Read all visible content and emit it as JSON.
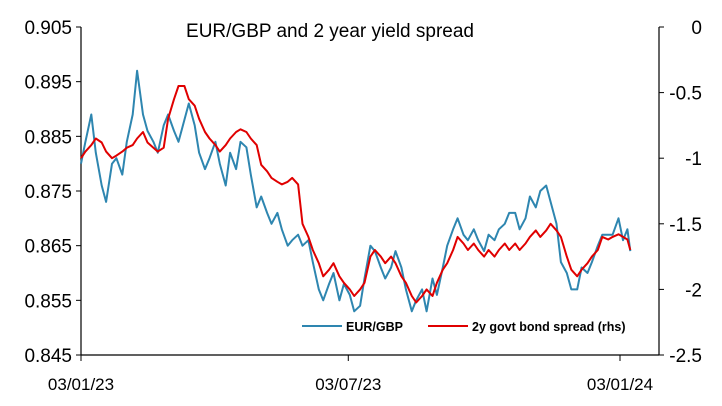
{
  "chart_data": {
    "type": "line",
    "title": "EUR/GBP and 2 year yield spread",
    "xlabel": "",
    "ylabel": "",
    "y2label": "",
    "x_ticks": [
      "03/01/23",
      "03/07/23",
      "03/01/24"
    ],
    "x_range": [
      "2023-01-03",
      "2024-01-10"
    ],
    "ylim_left": [
      0.845,
      0.905
    ],
    "yticks_left": [
      "0.905",
      "0.895",
      "0.885",
      "0.875",
      "0.865",
      "0.855",
      "0.845"
    ],
    "ylim_right": [
      -2.5,
      0
    ],
    "yticks_right": [
      "0",
      "-0.5",
      "-1",
      "-1.5",
      "-2",
      "-2.5"
    ],
    "grid": false,
    "legend_position": "bottom-right",
    "colors": {
      "eurgbp": "#2E86B0",
      "spread": "#E00000"
    },
    "series": [
      {
        "name": "EUR/GBP",
        "axis": "left",
        "points": [
          [
            "2023-01-03",
            0.88
          ],
          [
            "2023-01-06",
            0.884
          ],
          [
            "2023-01-10",
            0.889
          ],
          [
            "2023-01-13",
            0.882
          ],
          [
            "2023-01-17",
            0.876
          ],
          [
            "2023-01-20",
            0.873
          ],
          [
            "2023-01-24",
            0.88
          ],
          [
            "2023-01-27",
            0.881
          ],
          [
            "2023-01-31",
            0.878
          ],
          [
            "2023-02-03",
            0.884
          ],
          [
            "2023-02-07",
            0.889
          ],
          [
            "2023-02-10",
            0.897
          ],
          [
            "2023-02-14",
            0.889
          ],
          [
            "2023-02-17",
            0.886
          ],
          [
            "2023-02-21",
            0.884
          ],
          [
            "2023-02-24",
            0.882
          ],
          [
            "2023-02-28",
            0.887
          ],
          [
            "2023-03-03",
            0.889
          ],
          [
            "2023-03-07",
            0.886
          ],
          [
            "2023-03-10",
            0.884
          ],
          [
            "2023-03-14",
            0.888
          ],
          [
            "2023-03-17",
            0.891
          ],
          [
            "2023-03-21",
            0.887
          ],
          [
            "2023-03-24",
            0.882
          ],
          [
            "2023-03-28",
            0.879
          ],
          [
            "2023-03-31",
            0.881
          ],
          [
            "2023-04-04",
            0.884
          ],
          [
            "2023-04-07",
            0.88
          ],
          [
            "2023-04-11",
            0.876
          ],
          [
            "2023-04-14",
            0.882
          ],
          [
            "2023-04-18",
            0.879
          ],
          [
            "2023-04-21",
            0.884
          ],
          [
            "2023-04-25",
            0.883
          ],
          [
            "2023-04-28",
            0.878
          ],
          [
            "2023-05-02",
            0.872
          ],
          [
            "2023-05-05",
            0.874
          ],
          [
            "2023-05-09",
            0.871
          ],
          [
            "2023-05-12",
            0.869
          ],
          [
            "2023-05-16",
            0.871
          ],
          [
            "2023-05-19",
            0.868
          ],
          [
            "2023-05-23",
            0.865
          ],
          [
            "2023-05-26",
            0.866
          ],
          [
            "2023-05-30",
            0.867
          ],
          [
            "2023-06-02",
            0.865
          ],
          [
            "2023-06-06",
            0.866
          ],
          [
            "2023-06-09",
            0.862
          ],
          [
            "2023-06-13",
            0.857
          ],
          [
            "2023-06-16",
            0.855
          ],
          [
            "2023-06-20",
            0.858
          ],
          [
            "2023-06-23",
            0.86
          ],
          [
            "2023-06-27",
            0.855
          ],
          [
            "2023-06-30",
            0.858
          ],
          [
            "2023-07-04",
            0.856
          ],
          [
            "2023-07-07",
            0.853
          ],
          [
            "2023-07-11",
            0.854
          ],
          [
            "2023-07-14",
            0.859
          ],
          [
            "2023-07-18",
            0.865
          ],
          [
            "2023-07-21",
            0.864
          ],
          [
            "2023-07-25",
            0.861
          ],
          [
            "2023-07-28",
            0.859
          ],
          [
            "2023-08-01",
            0.861
          ],
          [
            "2023-08-04",
            0.864
          ],
          [
            "2023-08-08",
            0.861
          ],
          [
            "2023-08-11",
            0.857
          ],
          [
            "2023-08-15",
            0.853
          ],
          [
            "2023-08-18",
            0.855
          ],
          [
            "2023-08-22",
            0.857
          ],
          [
            "2023-08-25",
            0.853
          ],
          [
            "2023-08-29",
            0.859
          ],
          [
            "2023-09-01",
            0.856
          ],
          [
            "2023-09-05",
            0.861
          ],
          [
            "2023-09-08",
            0.865
          ],
          [
            "2023-09-12",
            0.868
          ],
          [
            "2023-09-15",
            0.87
          ],
          [
            "2023-09-19",
            0.867
          ],
          [
            "2023-09-22",
            0.866
          ],
          [
            "2023-09-26",
            0.868
          ],
          [
            "2023-09-29",
            0.866
          ],
          [
            "2023-10-03",
            0.864
          ],
          [
            "2023-10-06",
            0.867
          ],
          [
            "2023-10-10",
            0.866
          ],
          [
            "2023-10-13",
            0.868
          ],
          [
            "2023-10-17",
            0.869
          ],
          [
            "2023-10-20",
            0.871
          ],
          [
            "2023-10-24",
            0.871
          ],
          [
            "2023-10-27",
            0.868
          ],
          [
            "2023-10-31",
            0.87
          ],
          [
            "2023-11-03",
            0.874
          ],
          [
            "2023-11-07",
            0.872
          ],
          [
            "2023-11-10",
            0.875
          ],
          [
            "2023-11-14",
            0.876
          ],
          [
            "2023-11-17",
            0.873
          ],
          [
            "2023-11-21",
            0.869
          ],
          [
            "2023-11-24",
            0.862
          ],
          [
            "2023-11-28",
            0.86
          ],
          [
            "2023-12-01",
            0.857
          ],
          [
            "2023-12-05",
            0.857
          ],
          [
            "2023-12-08",
            0.861
          ],
          [
            "2023-12-12",
            0.86
          ],
          [
            "2023-12-15",
            0.862
          ],
          [
            "2023-12-19",
            0.865
          ],
          [
            "2023-12-22",
            0.867
          ],
          [
            "2023-12-26",
            0.867
          ],
          [
            "2023-12-29",
            0.867
          ],
          [
            "2024-01-02",
            0.87
          ],
          [
            "2024-01-05",
            0.866
          ],
          [
            "2024-01-08",
            0.868
          ],
          [
            "2024-01-10",
            0.864
          ]
        ]
      },
      {
        "name": "2y govt bond spread (rhs)",
        "axis": "right",
        "points": [
          [
            "2023-01-03",
            -1.0
          ],
          [
            "2023-01-06",
            -0.95
          ],
          [
            "2023-01-10",
            -0.9
          ],
          [
            "2023-01-13",
            -0.85
          ],
          [
            "2023-01-17",
            -0.88
          ],
          [
            "2023-01-20",
            -0.95
          ],
          [
            "2023-01-24",
            -1.0
          ],
          [
            "2023-01-27",
            -0.98
          ],
          [
            "2023-01-31",
            -0.95
          ],
          [
            "2023-02-03",
            -0.92
          ],
          [
            "2023-02-07",
            -0.9
          ],
          [
            "2023-02-10",
            -0.85
          ],
          [
            "2023-02-14",
            -0.8
          ],
          [
            "2023-02-17",
            -0.88
          ],
          [
            "2023-02-21",
            -0.92
          ],
          [
            "2023-02-24",
            -0.95
          ],
          [
            "2023-02-28",
            -0.92
          ],
          [
            "2023-03-03",
            -0.7
          ],
          [
            "2023-03-07",
            -0.55
          ],
          [
            "2023-03-10",
            -0.45
          ],
          [
            "2023-03-14",
            -0.45
          ],
          [
            "2023-03-17",
            -0.55
          ],
          [
            "2023-03-21",
            -0.6
          ],
          [
            "2023-03-24",
            -0.7
          ],
          [
            "2023-03-28",
            -0.8
          ],
          [
            "2023-03-31",
            -0.85
          ],
          [
            "2023-04-04",
            -0.9
          ],
          [
            "2023-04-07",
            -0.95
          ],
          [
            "2023-04-11",
            -0.9
          ],
          [
            "2023-04-14",
            -0.85
          ],
          [
            "2023-04-18",
            -0.8
          ],
          [
            "2023-04-21",
            -0.78
          ],
          [
            "2023-04-25",
            -0.8
          ],
          [
            "2023-04-28",
            -0.85
          ],
          [
            "2023-05-02",
            -0.9
          ],
          [
            "2023-05-05",
            -1.05
          ],
          [
            "2023-05-09",
            -1.1
          ],
          [
            "2023-05-12",
            -1.15
          ],
          [
            "2023-05-16",
            -1.18
          ],
          [
            "2023-05-19",
            -1.2
          ],
          [
            "2023-05-23",
            -1.18
          ],
          [
            "2023-05-26",
            -1.15
          ],
          [
            "2023-05-30",
            -1.2
          ],
          [
            "2023-06-02",
            -1.5
          ],
          [
            "2023-06-06",
            -1.6
          ],
          [
            "2023-06-09",
            -1.7
          ],
          [
            "2023-06-13",
            -1.8
          ],
          [
            "2023-06-16",
            -1.9
          ],
          [
            "2023-06-20",
            -1.85
          ],
          [
            "2023-06-23",
            -1.8
          ],
          [
            "2023-06-27",
            -1.9
          ],
          [
            "2023-06-30",
            -1.95
          ],
          [
            "2023-07-04",
            -2.0
          ],
          [
            "2023-07-07",
            -2.05
          ],
          [
            "2023-07-11",
            -2.0
          ],
          [
            "2023-07-14",
            -1.95
          ],
          [
            "2023-07-18",
            -1.75
          ],
          [
            "2023-07-21",
            -1.7
          ],
          [
            "2023-07-25",
            -1.75
          ],
          [
            "2023-07-28",
            -1.8
          ],
          [
            "2023-08-01",
            -1.75
          ],
          [
            "2023-08-04",
            -1.8
          ],
          [
            "2023-08-08",
            -1.9
          ],
          [
            "2023-08-11",
            -1.95
          ],
          [
            "2023-08-15",
            -2.05
          ],
          [
            "2023-08-18",
            -2.1
          ],
          [
            "2023-08-22",
            -2.05
          ],
          [
            "2023-08-25",
            -2.0
          ],
          [
            "2023-08-29",
            -2.05
          ],
          [
            "2023-09-01",
            -1.95
          ],
          [
            "2023-09-05",
            -1.85
          ],
          [
            "2023-09-08",
            -1.8
          ],
          [
            "2023-09-12",
            -1.7
          ],
          [
            "2023-09-15",
            -1.6
          ],
          [
            "2023-09-19",
            -1.65
          ],
          [
            "2023-09-22",
            -1.7
          ],
          [
            "2023-09-26",
            -1.65
          ],
          [
            "2023-09-29",
            -1.7
          ],
          [
            "2023-10-03",
            -1.75
          ],
          [
            "2023-10-06",
            -1.7
          ],
          [
            "2023-10-10",
            -1.75
          ],
          [
            "2023-10-13",
            -1.7
          ],
          [
            "2023-10-17",
            -1.65
          ],
          [
            "2023-10-20",
            -1.7
          ],
          [
            "2023-10-24",
            -1.65
          ],
          [
            "2023-10-27",
            -1.7
          ],
          [
            "2023-10-31",
            -1.65
          ],
          [
            "2023-11-03",
            -1.6
          ],
          [
            "2023-11-07",
            -1.55
          ],
          [
            "2023-11-10",
            -1.6
          ],
          [
            "2023-11-14",
            -1.55
          ],
          [
            "2023-11-17",
            -1.5
          ],
          [
            "2023-11-21",
            -1.55
          ],
          [
            "2023-11-24",
            -1.6
          ],
          [
            "2023-11-28",
            -1.75
          ],
          [
            "2023-12-01",
            -1.85
          ],
          [
            "2023-12-05",
            -1.9
          ],
          [
            "2023-12-08",
            -1.85
          ],
          [
            "2023-12-12",
            -1.8
          ],
          [
            "2023-12-15",
            -1.75
          ],
          [
            "2023-12-19",
            -1.7
          ],
          [
            "2023-12-22",
            -1.6
          ],
          [
            "2023-12-26",
            -1.62
          ],
          [
            "2023-12-29",
            -1.6
          ],
          [
            "2024-01-02",
            -1.58
          ],
          [
            "2024-01-05",
            -1.6
          ],
          [
            "2024-01-08",
            -1.62
          ],
          [
            "2024-01-10",
            -1.7
          ]
        ]
      }
    ]
  }
}
